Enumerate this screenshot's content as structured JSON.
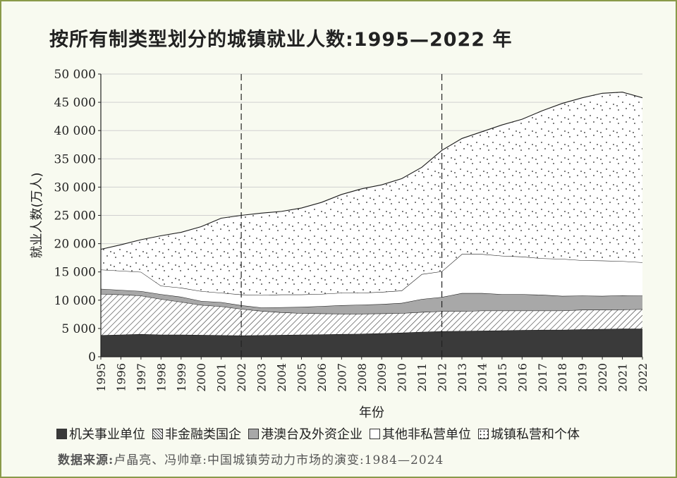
{
  "title": "按所有制类型划分的城镇就业人数:1995—2022 年",
  "source": {
    "label": "数据来源:",
    "text": "卢晶亮、冯帅章:中国城镇劳动力市场的演变:1984—2024"
  },
  "legend": [
    {
      "name": "机关事业单位",
      "pattern": "solid"
    },
    {
      "name": "非金融类国企",
      "pattern": "hatch"
    },
    {
      "name": "港澳台及外资企业",
      "pattern": "gray"
    },
    {
      "name": "其他非私营单位",
      "pattern": "white"
    },
    {
      "name": "城镇私营和个体",
      "pattern": "dots"
    }
  ],
  "colors": {
    "solid": "#3a3a3a",
    "gray": "#a8a8a8",
    "white": "#ffffff",
    "line": "#222222",
    "background": "#f8faf0"
  },
  "chart_data": {
    "type": "area",
    "stacked": true,
    "title": "按所有制类型划分的城镇就业人数:1995—2022 年",
    "xlabel": "年份",
    "ylabel": "就业人数(万人)",
    "ylim": [
      0,
      50000
    ],
    "yticks": [
      0,
      5000,
      10000,
      15000,
      20000,
      25000,
      30000,
      35000,
      40000,
      45000,
      50000
    ],
    "ytick_labels": [
      "0",
      "5 000",
      "10 000",
      "15 000",
      "20 000",
      "25 000",
      "30 000",
      "35 000",
      "40 000",
      "45 000",
      "50 000"
    ],
    "x": [
      "1995",
      "1996",
      "1997",
      "1998",
      "1999",
      "2000",
      "2001",
      "2002",
      "2003",
      "2004",
      "2005",
      "2006",
      "2007",
      "2008",
      "2009",
      "2010",
      "2011",
      "2012",
      "2013",
      "2014",
      "2015",
      "2016",
      "2017",
      "2018",
      "2019",
      "2020",
      "2021",
      "2022"
    ],
    "vlines": [
      "2002",
      "2012"
    ],
    "grid": true,
    "series": [
      {
        "name": "机关事业单位",
        "pattern": "solid",
        "values": [
          3800,
          3900,
          4000,
          3900,
          3900,
          3850,
          3800,
          3750,
          3800,
          3850,
          3900,
          3950,
          4000,
          4050,
          4150,
          4250,
          4400,
          4500,
          4550,
          4600,
          4650,
          4700,
          4750,
          4750,
          4850,
          4900,
          4950,
          4950
        ]
      },
      {
        "name": "非金融类国企",
        "pattern": "hatch",
        "values": [
          7300,
          7100,
          6800,
          6300,
          5800,
          5300,
          5100,
          4700,
          4300,
          4000,
          3800,
          3700,
          3600,
          3550,
          3500,
          3450,
          3500,
          3550,
          3500,
          3550,
          3500,
          3450,
          3400,
          3400,
          3450,
          3400,
          3400,
          3450
        ]
      },
      {
        "name": "港澳台及外资企业",
        "pattern": "gray",
        "values": [
          900,
          800,
          800,
          850,
          900,
          700,
          750,
          650,
          600,
          900,
          1100,
          1300,
          1500,
          1600,
          1650,
          1800,
          2300,
          2500,
          3200,
          3100,
          2900,
          2900,
          2800,
          2600,
          2500,
          2450,
          2500,
          2400
        ]
      },
      {
        "name": "其他非私营单位",
        "pattern": "white",
        "values": [
          3400,
          3400,
          3400,
          1500,
          1600,
          1750,
          1650,
          1900,
          2200,
          2250,
          2200,
          2150,
          2200,
          2100,
          2150,
          2200,
          4400,
          4550,
          6900,
          6900,
          6800,
          6650,
          6450,
          6550,
          6250,
          6250,
          6050,
          5900
        ]
      },
      {
        "name": "城镇私营和个体",
        "pattern": "dots",
        "values": [
          3600,
          4600,
          5700,
          8850,
          9800,
          11400,
          13200,
          14000,
          14500,
          14700,
          15300,
          16200,
          17400,
          18400,
          18950,
          19800,
          18900,
          21400,
          20450,
          21650,
          23150,
          24300,
          26100,
          27500,
          28750,
          29600,
          29900,
          29100
        ]
      }
    ]
  }
}
